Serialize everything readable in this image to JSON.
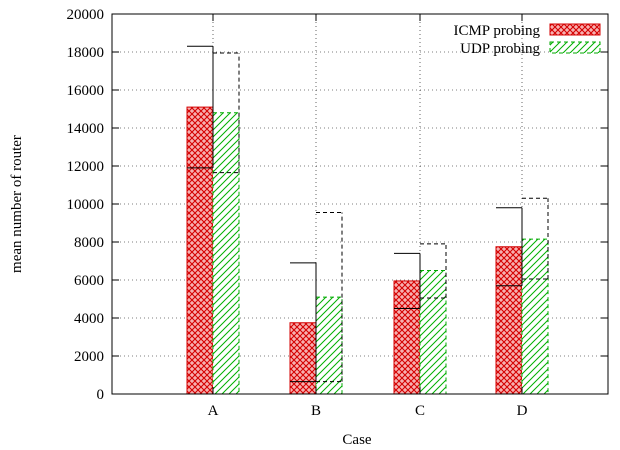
{
  "chart_data": {
    "type": "bar",
    "xlabel": "Case",
    "ylabel": "mean number of router",
    "ylim": [
      0,
      20000
    ],
    "yticks": [
      0,
      2000,
      4000,
      6000,
      8000,
      10000,
      12000,
      14000,
      16000,
      18000,
      20000
    ],
    "categories": [
      "A",
      "B",
      "C",
      "D"
    ],
    "grid": true,
    "legend_position": "top-right",
    "series": [
      {
        "name": "ICMP probing",
        "color": "#d40000",
        "fill": "#f08080",
        "pattern": "crosshatch",
        "values": [
          15100,
          3750,
          5950,
          7750
        ],
        "error_low": [
          11900,
          650,
          4500,
          5700
        ],
        "error_high": [
          18300,
          6900,
          7400,
          9800
        ]
      },
      {
        "name": "UDP probing",
        "color": "#00aa00",
        "fill": "#ffffff",
        "pattern": "diagonal",
        "values": [
          14800,
          5100,
          6500,
          8150
        ],
        "error_low": [
          11650,
          650,
          5050,
          6050
        ],
        "error_high": [
          17950,
          9550,
          7900,
          10300
        ]
      }
    ]
  }
}
